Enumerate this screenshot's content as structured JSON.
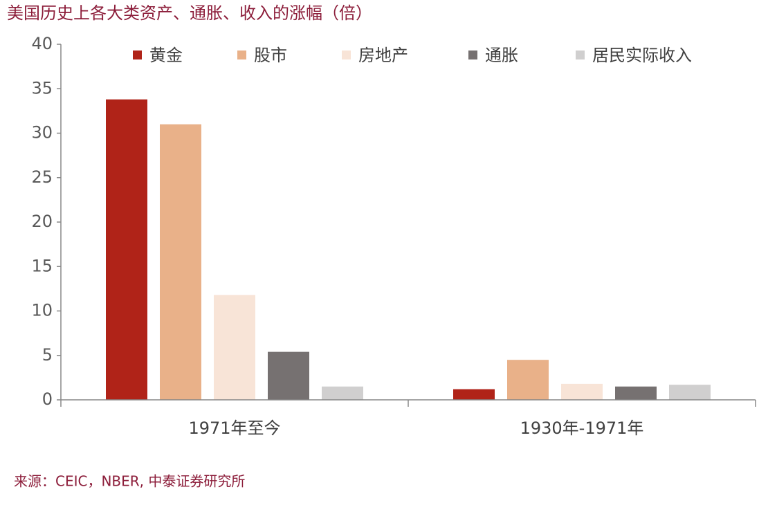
{
  "chart_data": {
    "type": "bar",
    "title": "美国历史上各大类资产、通胀、收入的涨幅（倍）",
    "source": "来源：CEIC，NBER, 中泰证券研究所",
    "categories": [
      "1971年至今",
      "1930年-1971年"
    ],
    "series": [
      {
        "name": "黄金",
        "color": "#b02318",
        "values": [
          33.8,
          1.2
        ]
      },
      {
        "name": "股市",
        "color": "#e9b189",
        "values": [
          31,
          4.5
        ]
      },
      {
        "name": "房地产",
        "color": "#f8e4d7",
        "values": [
          11.8,
          1.8
        ]
      },
      {
        "name": "通胀",
        "color": "#767171",
        "values": [
          5.4,
          1.5
        ]
      },
      {
        "name": "居民实际收入",
        "color": "#d0cfcf",
        "values": [
          1.5,
          1.7
        ]
      }
    ],
    "ylim": [
      0,
      40
    ],
    "yticks": [
      0,
      5,
      10,
      15,
      20,
      25,
      30,
      35,
      40
    ],
    "legend": "top"
  }
}
